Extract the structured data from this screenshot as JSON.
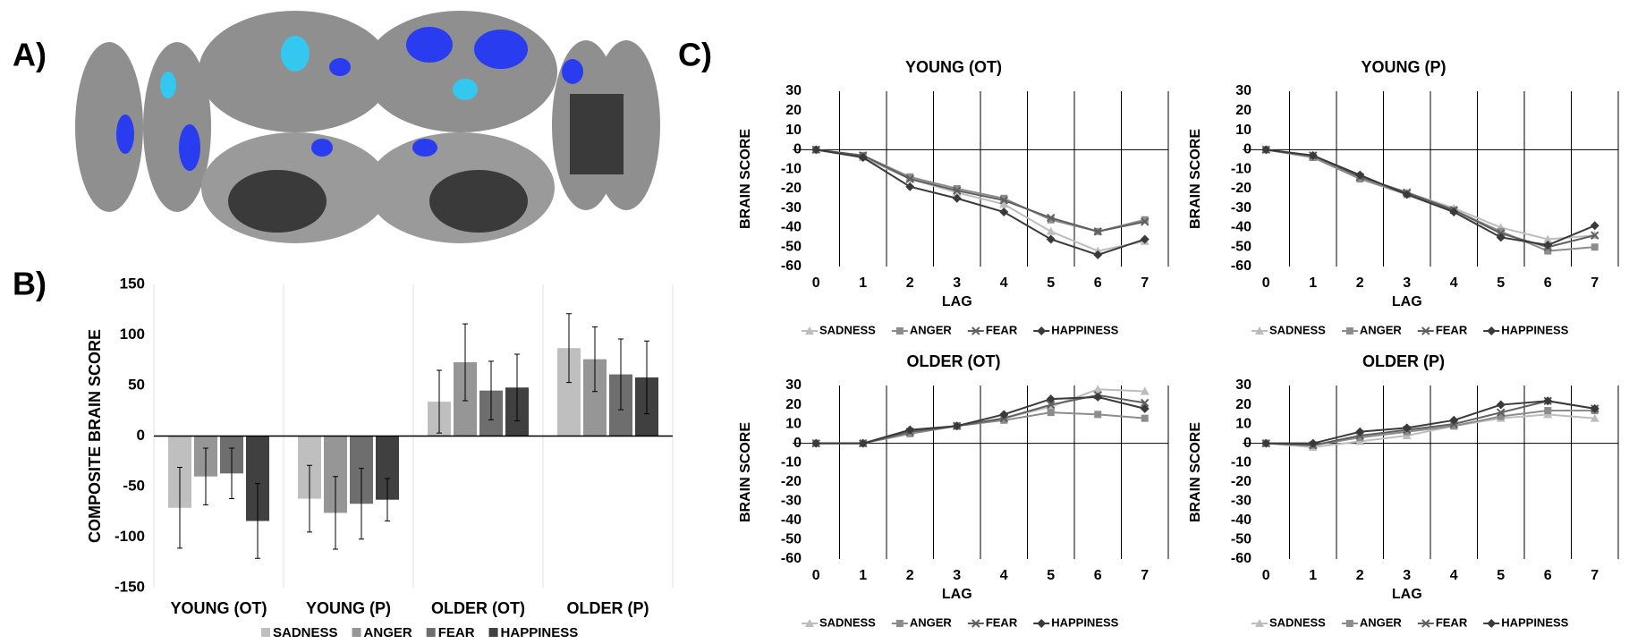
{
  "panel_labels": [
    "A)",
    "B)",
    "C)"
  ],
  "chart_data": [
    {
      "type": "bar",
      "ylabel": "COMPOSITE BRAIN SCORE",
      "categories": [
        "YOUNG (OT)",
        "YOUNG (P)",
        "OLDER (OT)",
        "OLDER (P)"
      ],
      "series": [
        {
          "name": "SADNESS",
          "color": "#bfbfbf",
          "values": [
            -71,
            -62,
            34,
            87
          ],
          "errors": [
            40,
            33,
            31,
            34
          ]
        },
        {
          "name": "ANGER",
          "color": "#969696",
          "values": [
            -40,
            -76,
            73,
            76
          ],
          "errors": [
            28,
            36,
            38,
            32
          ]
        },
        {
          "name": "FEAR",
          "color": "#6e6e6e",
          "values": [
            -37,
            -67,
            45,
            61
          ],
          "errors": [
            25,
            35,
            29,
            35
          ]
        },
        {
          "name": "HAPPINESS",
          "color": "#404040",
          "values": [
            -84,
            -63,
            48,
            58
          ],
          "errors": [
            37,
            21,
            33,
            36
          ]
        }
      ],
      "ylim": [
        -150,
        150
      ],
      "yticks": [
        -150,
        -100,
        -50,
        0,
        50,
        100,
        150
      ],
      "legend": "bottom"
    },
    {
      "type": "line",
      "title": "YOUNG (OT)",
      "xlabel": "LAG",
      "ylabel": "BRAIN SCORE",
      "x": [
        0,
        1,
        2,
        3,
        4,
        5,
        6,
        7
      ],
      "xlim": [
        -0.5,
        7.5
      ],
      "xticks": [
        0,
        1,
        2,
        3,
        4,
        5,
        6,
        7
      ],
      "ylim": [
        -60,
        30
      ],
      "yticks": [
        -60,
        -50,
        -40,
        -30,
        -20,
        -10,
        0,
        10,
        20,
        30
      ],
      "series": [
        {
          "name": "SADNESS",
          "color": "#bdbdbd",
          "marker": "triangle",
          "values": [
            0,
            -4,
            -15,
            -22,
            -28,
            -42,
            -52,
            -47
          ]
        },
        {
          "name": "ANGER",
          "color": "#8c8c8c",
          "marker": "square",
          "values": [
            0,
            -3,
            -14,
            -20,
            -25,
            -36,
            -42,
            -36
          ]
        },
        {
          "name": "FEAR",
          "color": "#5f5f5f",
          "marker": "x",
          "values": [
            0,
            -3,
            -15,
            -21,
            -26,
            -35,
            -42,
            -37
          ]
        },
        {
          "name": "HAPPINESS",
          "color": "#3a3a3a",
          "marker": "diamond",
          "values": [
            0,
            -4,
            -19,
            -25,
            -32,
            -46,
            -54,
            -46
          ]
        }
      ],
      "legend": "bottom"
    },
    {
      "type": "line",
      "title": "YOUNG (P)",
      "xlabel": "LAG",
      "ylabel": "BRAIN SCORE",
      "x": [
        0,
        1,
        2,
        3,
        4,
        5,
        6,
        7
      ],
      "xlim": [
        -0.5,
        7.5
      ],
      "xticks": [
        0,
        1,
        2,
        3,
        4,
        5,
        6,
        7
      ],
      "ylim": [
        -60,
        30
      ],
      "yticks": [
        -60,
        -50,
        -40,
        -30,
        -20,
        -10,
        0,
        10,
        20,
        30
      ],
      "series": [
        {
          "name": "SADNESS",
          "color": "#bdbdbd",
          "marker": "triangle",
          "values": [
            0,
            -4,
            -14,
            -22,
            -30,
            -40,
            -46,
            -44
          ]
        },
        {
          "name": "ANGER",
          "color": "#8c8c8c",
          "marker": "square",
          "values": [
            0,
            -4,
            -15,
            -23,
            -31,
            -42,
            -52,
            -50
          ]
        },
        {
          "name": "FEAR",
          "color": "#5f5f5f",
          "marker": "x",
          "values": [
            0,
            -3,
            -14,
            -22,
            -31,
            -43,
            -50,
            -44
          ]
        },
        {
          "name": "HAPPINESS",
          "color": "#3a3a3a",
          "marker": "diamond",
          "values": [
            0,
            -3,
            -13,
            -23,
            -32,
            -45,
            -49,
            -39
          ]
        }
      ],
      "legend": "bottom"
    },
    {
      "type": "line",
      "title": "OLDER (OT)",
      "xlabel": "LAG",
      "ylabel": "BRAIN SCORE",
      "x": [
        0,
        1,
        2,
        3,
        4,
        5,
        6,
        7
      ],
      "xlim": [
        -0.5,
        7.5
      ],
      "xticks": [
        0,
        1,
        2,
        3,
        4,
        5,
        6,
        7
      ],
      "ylim": [
        -60,
        30
      ],
      "yticks": [
        -60,
        -50,
        -40,
        -30,
        -20,
        -10,
        0,
        10,
        20,
        30
      ],
      "series": [
        {
          "name": "SADNESS",
          "color": "#bdbdbd",
          "marker": "triangle",
          "values": [
            0,
            0,
            6,
            9,
            13,
            19,
            28,
            27
          ]
        },
        {
          "name": "ANGER",
          "color": "#8c8c8c",
          "marker": "square",
          "values": [
            0,
            0,
            5,
            9,
            12,
            16,
            15,
            13
          ]
        },
        {
          "name": "FEAR",
          "color": "#5f5f5f",
          "marker": "x",
          "values": [
            0,
            0,
            6,
            9,
            13,
            20,
            25,
            21
          ]
        },
        {
          "name": "HAPPINESS",
          "color": "#3a3a3a",
          "marker": "diamond",
          "values": [
            0,
            0,
            7,
            9,
            15,
            23,
            24,
            18
          ]
        }
      ],
      "legend": "bottom"
    },
    {
      "type": "line",
      "title": "OLDER (P)",
      "xlabel": "LAG",
      "ylabel": "BRAIN SCORE",
      "x": [
        0,
        1,
        2,
        3,
        4,
        5,
        6,
        7
      ],
      "xlim": [
        -0.5,
        7.5
      ],
      "xticks": [
        0,
        1,
        2,
        3,
        4,
        5,
        6,
        7
      ],
      "ylim": [
        -60,
        30
      ],
      "yticks": [
        -60,
        -50,
        -40,
        -30,
        -20,
        -10,
        0,
        10,
        20,
        30
      ],
      "series": [
        {
          "name": "SADNESS",
          "color": "#bdbdbd",
          "marker": "triangle",
          "values": [
            0,
            -2,
            1,
            4,
            9,
            13,
            15,
            13
          ]
        },
        {
          "name": "ANGER",
          "color": "#8c8c8c",
          "marker": "square",
          "values": [
            0,
            -1,
            3,
            6,
            9,
            14,
            17,
            17
          ]
        },
        {
          "name": "FEAR",
          "color": "#5f5f5f",
          "marker": "x",
          "values": [
            0,
            -1,
            4,
            7,
            10,
            16,
            22,
            18
          ]
        },
        {
          "name": "HAPPINESS",
          "color": "#3a3a3a",
          "marker": "diamond",
          "values": [
            0,
            0,
            6,
            8,
            12,
            20,
            22,
            18
          ]
        }
      ],
      "legend": "bottom"
    }
  ]
}
